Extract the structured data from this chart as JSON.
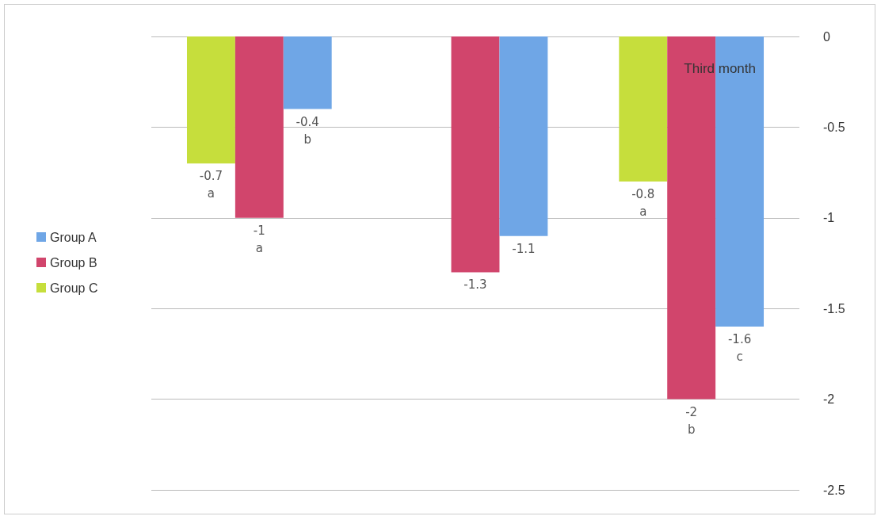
{
  "chart_data": {
    "type": "bar",
    "categories": [
      null,
      null,
      null
    ],
    "series": [
      {
        "name": "Group C",
        "color": "#c6de3c",
        "values": [
          -0.7,
          null,
          -0.8
        ],
        "value_labels": [
          "-0.7\na",
          null,
          "-0.8\na"
        ]
      },
      {
        "name": "Group B",
        "color": "#d1456c",
        "values": [
          -1,
          -1.3,
          -2
        ],
        "value_labels": [
          "-1\na",
          "-1.3",
          "-2\nb"
        ]
      },
      {
        "name": "Group A",
        "color": "#6fa6e6",
        "values": [
          -0.4,
          -1.1,
          -1.6
        ],
        "value_labels": [
          "-0.4\nb",
          "-1.1",
          "-1.6\nc"
        ]
      }
    ],
    "ylim": [
      -2.5,
      0
    ],
    "yticks": [
      -2.5,
      -2,
      -1.5,
      -1,
      -0.5,
      0
    ],
    "grid": "y",
    "legend": "left",
    "annotations": [
      "Third month"
    ]
  }
}
